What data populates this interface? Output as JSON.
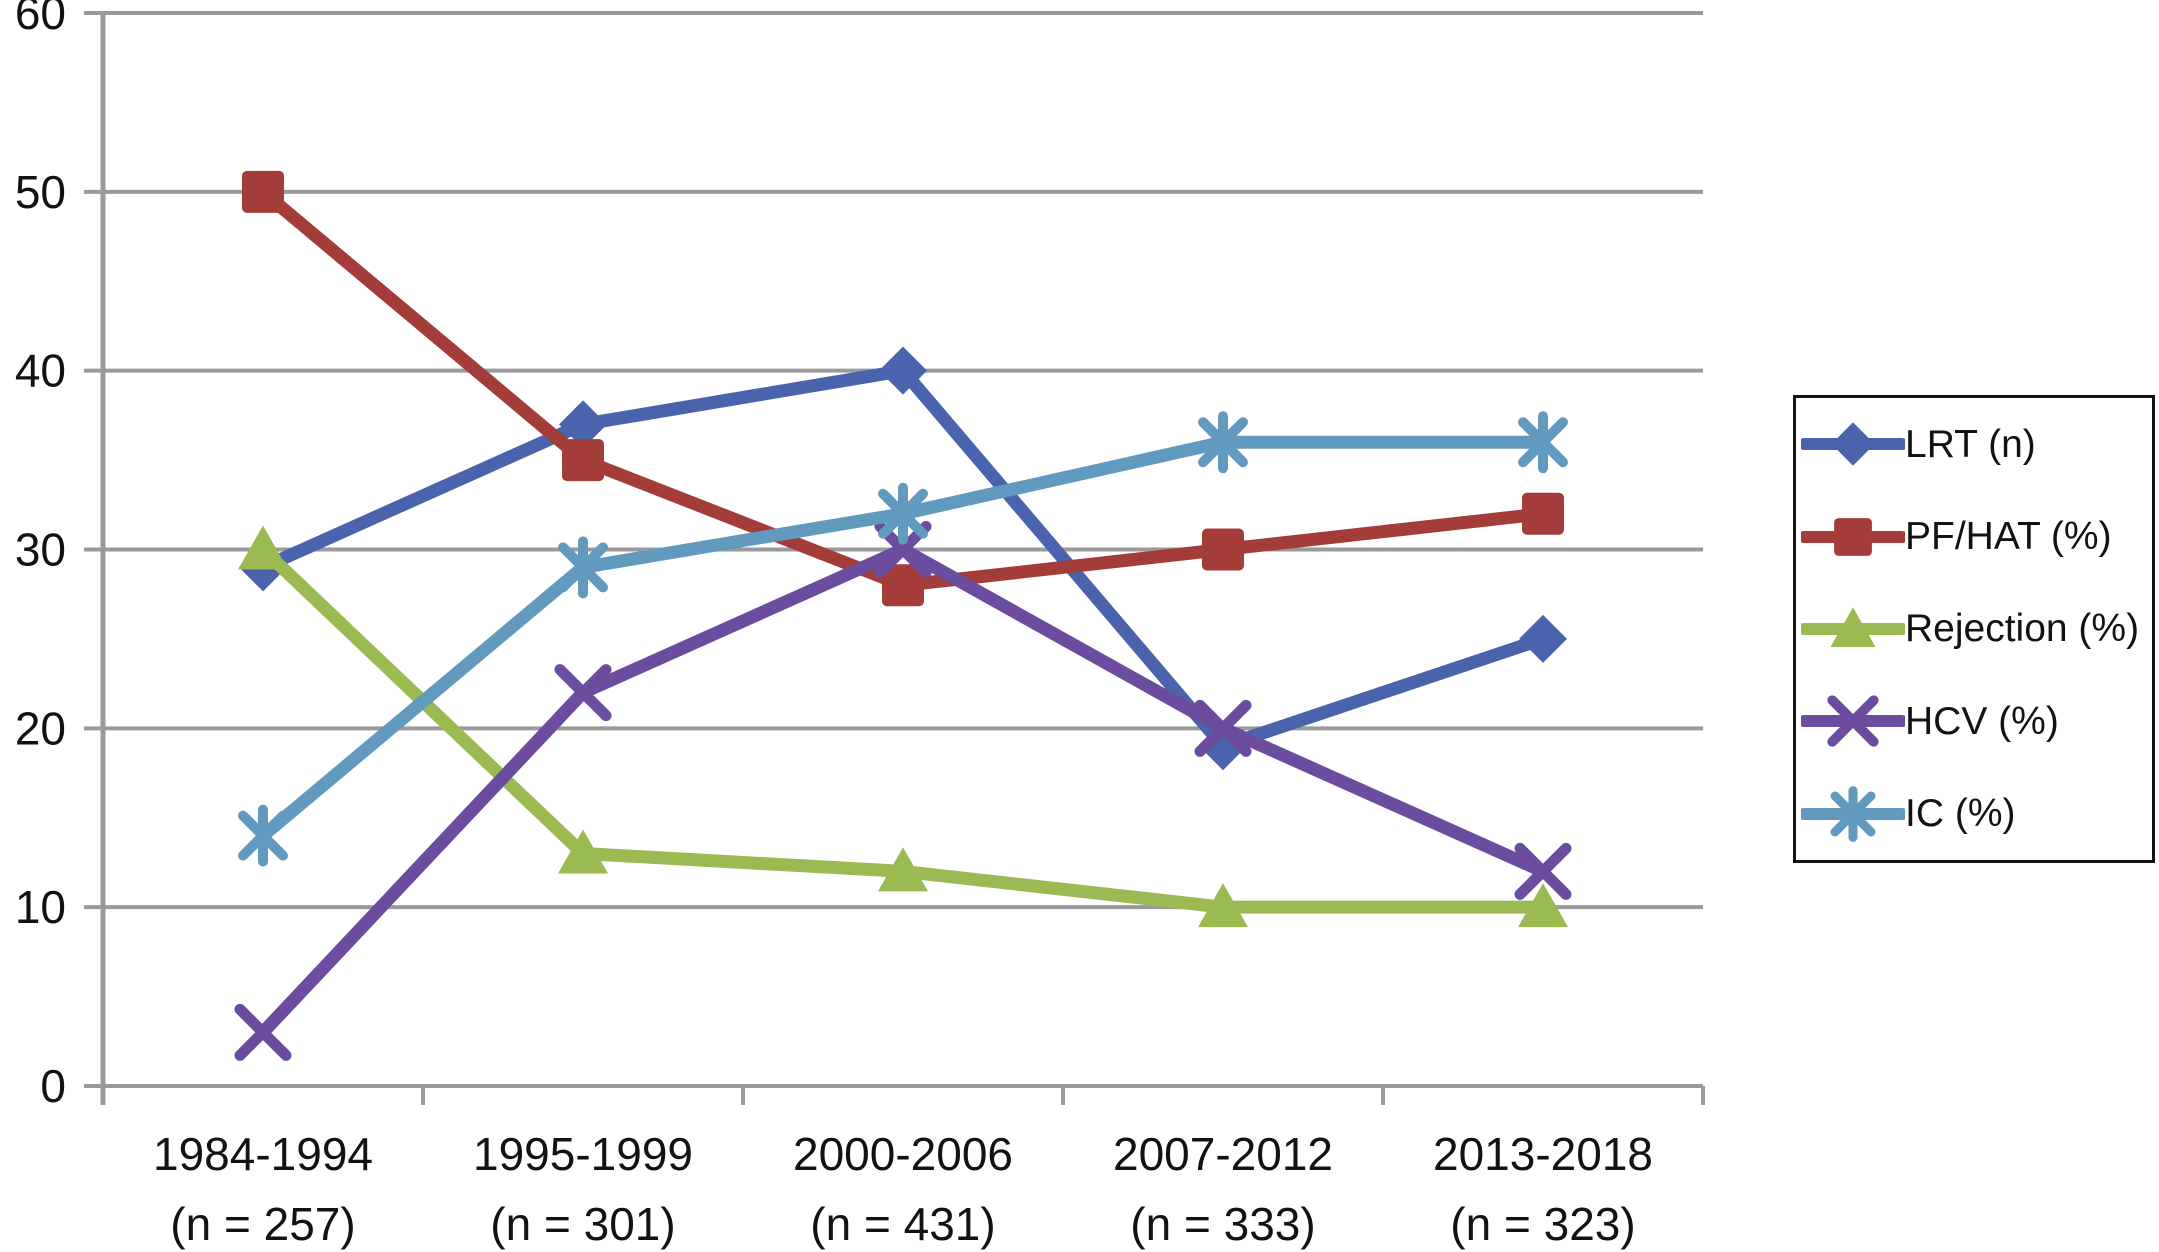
{
  "chart_data": {
    "type": "line",
    "title": "",
    "xlabel": "",
    "ylabel": "",
    "categories": [
      "1984-1994",
      "1995-1999",
      "2000-2006",
      "2007-2012",
      "2013-2018"
    ],
    "category_sublabels": [
      "(n = 257)",
      "(n = 301)",
      "(n = 431)",
      "(n = 333)",
      "(n = 323)"
    ],
    "series": [
      {
        "name": "LRT (n)",
        "marker": "diamond",
        "color": "#4A63AC",
        "values": [
          29,
          37,
          40,
          19,
          25
        ]
      },
      {
        "name": "PF/HAT (%)",
        "marker": "square",
        "color": "#A43D3A",
        "values": [
          50,
          35,
          28,
          30,
          32
        ]
      },
      {
        "name": "Rejection (%)",
        "marker": "triangle",
        "color": "#9BBA51",
        "values": [
          30,
          13,
          12,
          10,
          10
        ]
      },
      {
        "name": "HCV (%)",
        "marker": "x",
        "color": "#6C4C9F",
        "values": [
          3,
          22,
          30,
          20,
          12
        ]
      },
      {
        "name": "IC (%)",
        "marker": "asterisk",
        "color": "#6199BF",
        "values": [
          14,
          29,
          32,
          36,
          36
        ]
      }
    ],
    "yticks": [
      0,
      10,
      20,
      30,
      40,
      50,
      60
    ],
    "ylim": [
      0,
      60
    ],
    "grid": true,
    "legend_position": "right",
    "axis_color": "#9A9A9A",
    "text_color": "#121212",
    "legend_border_color": "#141414",
    "background_color": "#FFFFFF"
  }
}
